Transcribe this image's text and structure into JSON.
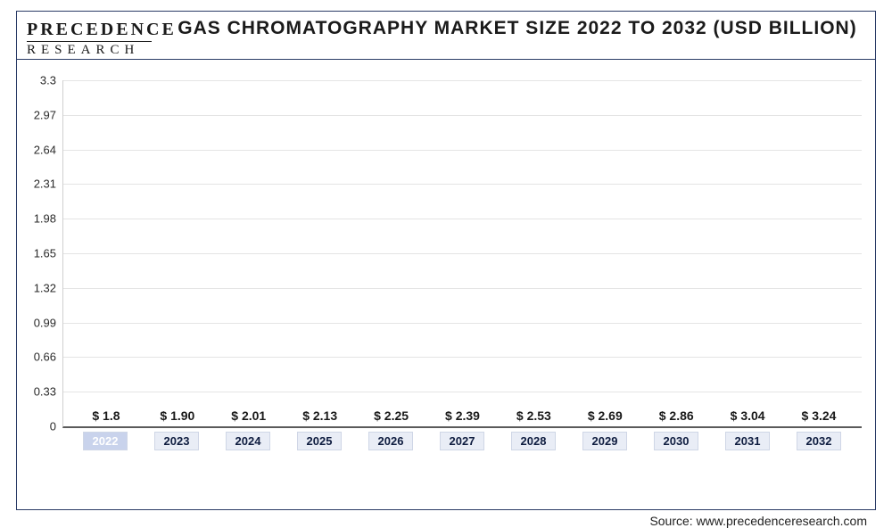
{
  "logo": {
    "line1": "PRECEDENCE",
    "line2": "RESEARCH"
  },
  "title": "GAS CHROMATOGRAPHY MARKET SIZE 2022 TO 2032 (USD BILLION)",
  "source": "Source: www.precedenceresearch.com",
  "chart": {
    "type": "bar",
    "y": {
      "min": 0,
      "max": 3.3,
      "step": 0.33,
      "ticks": [
        "0",
        "0.33",
        "0.66",
        "0.99",
        "1.32",
        "1.65",
        "1.98",
        "2.31",
        "2.64",
        "2.97",
        "3.3"
      ]
    },
    "categories": [
      "2022",
      "2023",
      "2024",
      "2025",
      "2026",
      "2027",
      "2028",
      "2029",
      "2030",
      "2031",
      "2032"
    ],
    "values": [
      1.8,
      1.9,
      2.01,
      2.13,
      2.25,
      2.39,
      2.53,
      2.69,
      2.86,
      3.04,
      3.24
    ],
    "value_labels": [
      "$ 1.8",
      "$ 1.90",
      "$ 2.01",
      "$ 2.13",
      "$ 2.25",
      "$ 2.39",
      "$ 2.53",
      "$ 2.69",
      "$ 2.86",
      "$ 3.04",
      "$ 3.24"
    ],
    "bar_colors": [
      "#b9c5e4",
      "#5e6f9e",
      "#475a90",
      "#3f5189",
      "#384a82",
      "#2f4176",
      "#1f3160",
      "#182a58",
      "#132350",
      "#0f1e48",
      "#0f1e48"
    ],
    "grid_color": "#e4e4e4",
    "axis_font_size": 13,
    "value_font_size": 14,
    "title_font_size": 21
  }
}
